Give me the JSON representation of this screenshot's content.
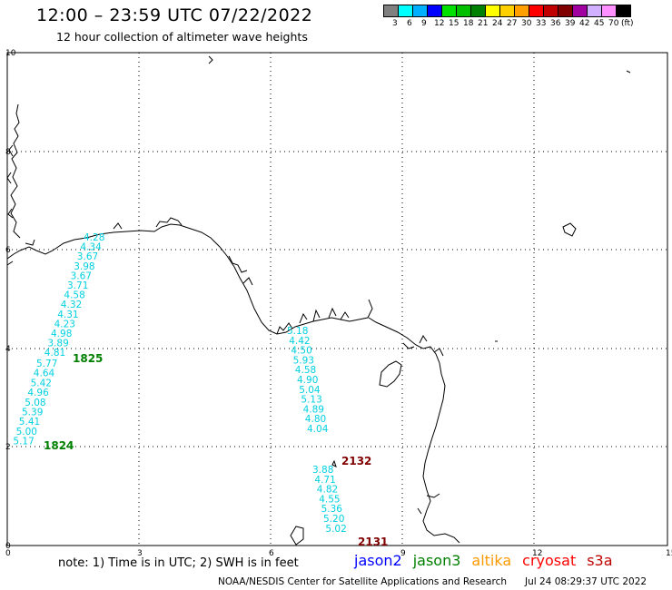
{
  "header": {
    "title": "12:00 – 23:59 UTC 07/22/2022",
    "subtitle": "12 hour collection of altimeter wave heights"
  },
  "colorbar": {
    "colors": [
      "#808080",
      "#00ffff",
      "#00b0ff",
      "#0000ff",
      "#00e000",
      "#00c000",
      "#008000",
      "#ffff00",
      "#ffd000",
      "#ffa000",
      "#ff0000",
      "#c00000",
      "#800000",
      "#a000a0",
      "#d0b0ff",
      "#ff90ff",
      "#000000"
    ],
    "labels": [
      "3",
      "6",
      "9",
      "12",
      "15",
      "18",
      "21",
      "24",
      "27",
      "30",
      "33",
      "36",
      "39",
      "42",
      "45",
      "70",
      "(ft)"
    ]
  },
  "axes": {
    "x_ticks": [
      "0",
      "3",
      "6",
      "9",
      "12",
      "15"
    ],
    "y_ticks": [
      "10",
      "8",
      "6",
      "4",
      "2",
      "0"
    ]
  },
  "tracks": [
    {
      "name": "jason3",
      "time_label": "1825",
      "color": "#00d0e0",
      "values": [
        "4.28",
        "4.34",
        "3.67",
        "3.98",
        "3.67",
        "3.71",
        "4.58",
        "4.32",
        "4.31",
        "4.23",
        "4.98",
        "3.89",
        "4.81"
      ]
    },
    {
      "name": "jason3",
      "time_label": "1824",
      "color": "#00d0e0",
      "values": [
        "5.77",
        "4.64",
        "5.42",
        "4.96",
        "5.08",
        "5.39",
        "5.41",
        "5.00",
        "5.17"
      ]
    },
    {
      "name": "s3a",
      "time_label": "2132",
      "color": "#00d0e0",
      "values": [
        "5.18",
        "4.42",
        "4.50",
        "5.93",
        "4.58",
        "4.90",
        "5.04",
        "5.13",
        "4.89",
        "4.80",
        "4.04"
      ]
    },
    {
      "name": "s3a",
      "time_label": "2131",
      "color": "#00d0e0",
      "values": [
        "3.88",
        "4.71",
        "4.82",
        "4.55",
        "5.36",
        "5.20",
        "5.02"
      ]
    }
  ],
  "footer": {
    "note": "note:  1) Time is in UTC;  2) SWH is in feet",
    "legend": [
      {
        "label": "jason2",
        "color": "#0000ff"
      },
      {
        "label": "jason3",
        "color": "#008000"
      },
      {
        "label": "altika",
        "color": "#ff9900"
      },
      {
        "label": "cryosat",
        "color": "#ff0000"
      },
      {
        "label": "s3a",
        "color": "#c00000"
      }
    ],
    "credit": "NOAA/NESDIS Center for Satellite Applications and Research",
    "timestamp": "Jul 24 08:29:37 UTC 2022"
  }
}
